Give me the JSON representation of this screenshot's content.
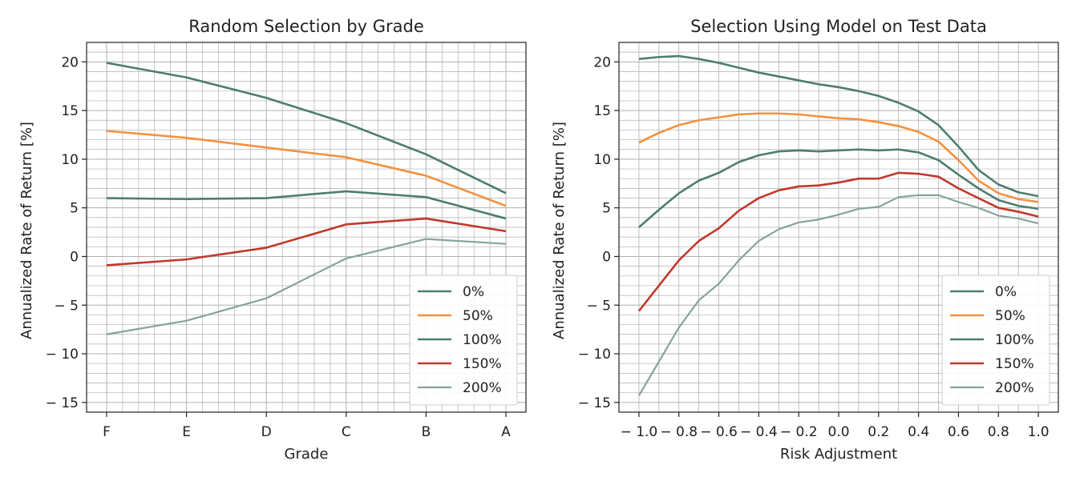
{
  "colors": {
    "teal": "#4d7d72",
    "orange": "#f5913e",
    "red": "#c0392b",
    "gray": "#86a39d",
    "grid": "#b0b0b0"
  },
  "chart_data": [
    {
      "type": "line",
      "title": "Random Selection by Grade",
      "xlabel": "Grade",
      "ylabel": "Annualized Rate of Return [%]",
      "categories": [
        "F",
        "E",
        "D",
        "C",
        "B",
        "A"
      ],
      "ylim": [
        -16,
        22
      ],
      "yticks": [
        -15,
        -10,
        -5,
        0,
        5,
        10,
        15,
        20
      ],
      "grid": true,
      "legend_position": "bottom-right",
      "series": [
        {
          "name": "0%",
          "color": "#4d7d72",
          "values": [
            19.9,
            18.4,
            16.3,
            13.7,
            10.5,
            6.5
          ]
        },
        {
          "name": "50%",
          "color": "#f5913e",
          "values": [
            12.9,
            12.2,
            11.2,
            10.2,
            8.3,
            5.2
          ]
        },
        {
          "name": "100%",
          "color": "#4d7d72",
          "values": [
            6.0,
            5.9,
            6.0,
            6.7,
            6.1,
            3.9
          ]
        },
        {
          "name": "150%",
          "color": "#c0392b",
          "values": [
            -0.9,
            -0.3,
            0.9,
            3.3,
            3.9,
            2.6
          ]
        },
        {
          "name": "200%",
          "color": "#86a39d",
          "values": [
            -8.0,
            -6.6,
            -4.3,
            -0.2,
            1.8,
            1.3
          ]
        }
      ]
    },
    {
      "type": "line",
      "title": "Selection Using Model on Test Data",
      "xlabel": "Risk Adjustment",
      "ylabel": "Annualized Rate of Return [%]",
      "x": [
        -1.0,
        -0.9,
        -0.8,
        -0.7,
        -0.6,
        -0.5,
        -0.4,
        -0.3,
        -0.2,
        -0.1,
        0.0,
        0.1,
        0.2,
        0.3,
        0.4,
        0.5,
        0.6,
        0.7,
        0.8,
        0.9,
        1.0
      ],
      "xlim": [
        -1.1,
        1.1
      ],
      "xticks": [
        -1.0,
        -0.8,
        -0.6,
        -0.4,
        -0.2,
        0.0,
        0.2,
        0.4,
        0.6,
        0.8,
        1.0
      ],
      "xtick_labels": [
        "− 1.0",
        "− 0.8",
        "− 0.6",
        "− 0.4",
        "− 0.2",
        "0.0",
        "0.2",
        "0.4",
        "0.6",
        "0.8",
        "1.0"
      ],
      "ylim": [
        -16,
        22
      ],
      "yticks": [
        -15,
        -10,
        -5,
        0,
        5,
        10,
        15,
        20
      ],
      "grid": true,
      "legend_position": "bottom-right",
      "series": [
        {
          "name": "0%",
          "color": "#4d7d72",
          "values": [
            20.3,
            20.5,
            20.6,
            20.3,
            19.9,
            19.4,
            18.9,
            18.5,
            18.1,
            17.7,
            17.4,
            17.0,
            16.5,
            15.8,
            14.9,
            13.5,
            11.3,
            8.9,
            7.4,
            6.6,
            6.2
          ]
        },
        {
          "name": "50%",
          "color": "#f5913e",
          "values": [
            11.7,
            12.7,
            13.5,
            14.0,
            14.3,
            14.6,
            14.7,
            14.7,
            14.6,
            14.4,
            14.2,
            14.1,
            13.8,
            13.4,
            12.8,
            11.8,
            9.9,
            7.8,
            6.5,
            5.9,
            5.6
          ]
        },
        {
          "name": "100%",
          "color": "#4d7d72",
          "values": [
            3.0,
            4.8,
            6.5,
            7.8,
            8.6,
            9.7,
            10.4,
            10.8,
            10.9,
            10.8,
            10.9,
            11.0,
            10.9,
            11.0,
            10.7,
            9.9,
            8.4,
            7.0,
            5.8,
            5.2,
            4.9
          ]
        },
        {
          "name": "150%",
          "color": "#c0392b",
          "values": [
            -5.6,
            -3.0,
            -0.4,
            1.6,
            2.9,
            4.7,
            6.0,
            6.8,
            7.2,
            7.3,
            7.6,
            8.0,
            8.0,
            8.6,
            8.5,
            8.2,
            7.0,
            6.0,
            5.0,
            4.6,
            4.1
          ]
        },
        {
          "name": "200%",
          "color": "#86a39d",
          "values": [
            -14.3,
            -10.8,
            -7.3,
            -4.5,
            -2.8,
            -0.4,
            1.6,
            2.8,
            3.5,
            3.8,
            4.3,
            4.9,
            5.1,
            6.1,
            6.3,
            6.3,
            5.6,
            5.0,
            4.2,
            3.9,
            3.4
          ]
        }
      ]
    }
  ]
}
